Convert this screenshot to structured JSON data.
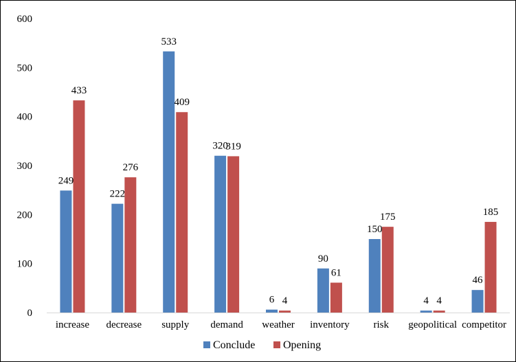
{
  "chart_data": {
    "type": "bar",
    "title": "",
    "xlabel": "",
    "ylabel": "",
    "categories": [
      "increase",
      "decrease",
      "supply",
      "demand",
      "weather",
      "inventory",
      "risk",
      "geopolitical",
      "competitor"
    ],
    "series": [
      {
        "name": "Conclude",
        "color": "#4f81bd",
        "values": [
          249,
          222,
          533,
          320,
          6,
          90,
          150,
          4,
          46
        ]
      },
      {
        "name": "Opening",
        "color": "#c0504d",
        "values": [
          433,
          276,
          409,
          319,
          4,
          61,
          175,
          4,
          185
        ]
      }
    ],
    "ylim": [
      0,
      600
    ],
    "yticks": [
      0,
      100,
      200,
      300,
      400,
      500,
      600
    ],
    "grid": false,
    "legend_position": "bottom"
  }
}
